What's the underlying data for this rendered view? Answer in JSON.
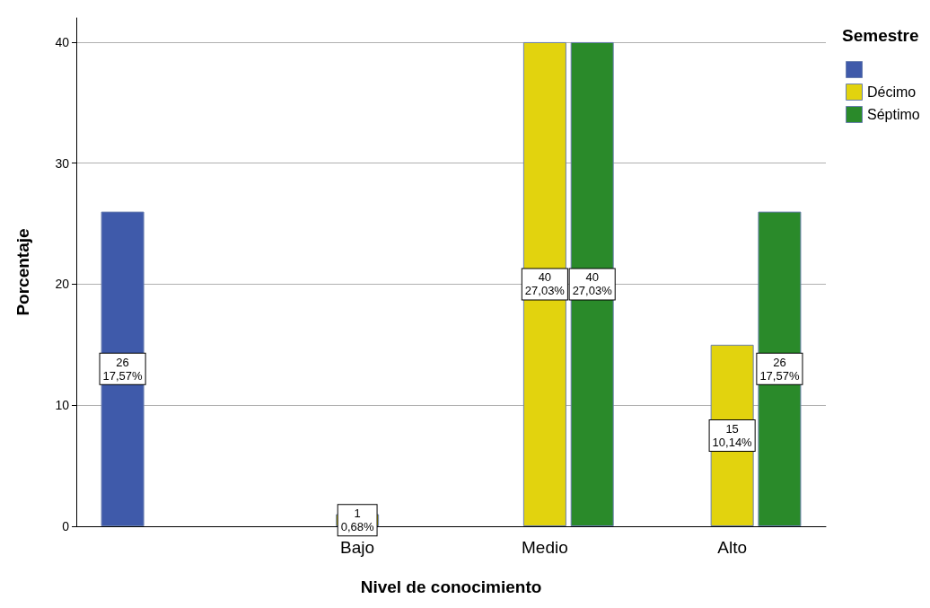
{
  "chart_data": {
    "type": "bar",
    "xlabel": "Nivel de conocimiento",
    "ylabel": "Porcentaje",
    "legend_title": "Semestre",
    "categories": [
      null,
      "Bajo",
      "Medio",
      "Alto"
    ],
    "series": [
      {
        "color": "#3f5aaa",
        "values": [
          26,
          null,
          null,
          null
        ],
        "value_labels": [
          "26\n17,57%",
          null,
          null,
          null
        ]
      },
      {
        "name": "Décimo",
        "color": "#e2d30e",
        "values": [
          null,
          1,
          40,
          15
        ],
        "value_labels": [
          null,
          "1\n0,68%",
          "40\n27,03%",
          "15\n10,14%"
        ]
      },
      {
        "name": "Séptimo",
        "color": "#2a8a2a",
        "values": [
          null,
          null,
          40,
          26
        ],
        "value_labels": [
          null,
          null,
          "40\n27,03%",
          "26\n17,57%"
        ]
      }
    ],
    "ylim": [
      0,
      42
    ],
    "yticks": [
      0,
      10,
      20,
      30,
      40
    ],
    "grid": "y",
    "legend": "top right"
  }
}
